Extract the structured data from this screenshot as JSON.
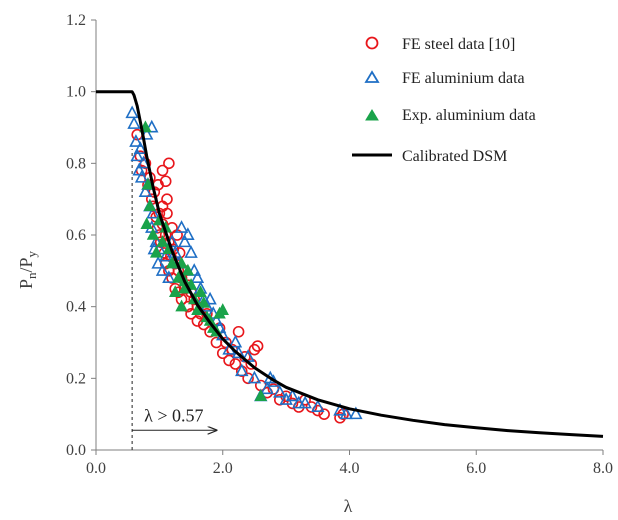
{
  "chart_data": {
    "type": "scatter",
    "xlabel": "λ",
    "ylabel_main": "P",
    "ylabel_sub1": "n",
    "ylabel_mid": "/P",
    "ylabel_sub2": "y",
    "xlim": [
      0,
      8
    ],
    "ylim": [
      0,
      1.2
    ],
    "x_ticks": [
      "0.0",
      "2.0",
      "4.0",
      "6.0",
      "8.0"
    ],
    "y_ticks": [
      "0.0",
      "0.2",
      "0.4",
      "0.6",
      "0.8",
      "1.0",
      "1.2"
    ],
    "grid": false,
    "legend_position": "top-right",
    "colors": {
      "steel": "#e8161b",
      "fe_alu": "#1f6fc5",
      "exp_alu": "#1aa34a",
      "curve": "#000000",
      "axis": "#7f7f7f"
    },
    "annotation": {
      "text": "λ > 0.57",
      "threshold": 0.57,
      "arrow_to_x": 1.9,
      "arrow_y": 0.055
    },
    "series": [
      {
        "name": "FE steel  data [10]",
        "marker": "circle-open",
        "points": [
          [
            0.65,
            0.88
          ],
          [
            0.7,
            0.82
          ],
          [
            0.72,
            0.78
          ],
          [
            0.78,
            0.8
          ],
          [
            0.82,
            0.74
          ],
          [
            0.85,
            0.76
          ],
          [
            0.88,
            0.7
          ],
          [
            0.9,
            0.68
          ],
          [
            0.92,
            0.72
          ],
          [
            0.95,
            0.65
          ],
          [
            0.97,
            0.62
          ],
          [
            1.0,
            0.66
          ],
          [
            1.0,
            0.6
          ],
          [
            1.02,
            0.58
          ],
          [
            1.05,
            0.68
          ],
          [
            1.05,
            0.63
          ],
          [
            1.08,
            0.55
          ],
          [
            1.1,
            0.6
          ],
          [
            1.1,
            0.52
          ],
          [
            1.12,
            0.66
          ],
          [
            1.12,
            0.7
          ],
          [
            1.15,
            0.58
          ],
          [
            1.15,
            0.5
          ],
          [
            1.18,
            0.54
          ],
          [
            1.2,
            0.62
          ],
          [
            1.2,
            0.48
          ],
          [
            1.22,
            0.56
          ],
          [
            1.25,
            0.52
          ],
          [
            1.25,
            0.45
          ],
          [
            1.28,
            0.6
          ],
          [
            1.3,
            0.5
          ],
          [
            1.3,
            0.44
          ],
          [
            1.32,
            0.55
          ],
          [
            1.35,
            0.48
          ],
          [
            1.35,
            0.42
          ],
          [
            1.4,
            0.5
          ],
          [
            1.4,
            0.45
          ],
          [
            1.45,
            0.46
          ],
          [
            1.45,
            0.4
          ],
          [
            1.5,
            0.44
          ],
          [
            1.5,
            0.38
          ],
          [
            1.55,
            0.42
          ],
          [
            1.6,
            0.4
          ],
          [
            1.6,
            0.36
          ],
          [
            1.65,
            0.38
          ],
          [
            1.7,
            0.35
          ],
          [
            1.75,
            0.38
          ],
          [
            1.8,
            0.33
          ],
          [
            1.9,
            0.3
          ],
          [
            1.95,
            0.34
          ],
          [
            2.0,
            0.27
          ],
          [
            2.05,
            0.3
          ],
          [
            2.1,
            0.25
          ],
          [
            2.15,
            0.28
          ],
          [
            2.2,
            0.24
          ],
          [
            2.25,
            0.33
          ],
          [
            2.3,
            0.22
          ],
          [
            2.35,
            0.26
          ],
          [
            2.4,
            0.2
          ],
          [
            2.45,
            0.24
          ],
          [
            2.5,
            0.28
          ],
          [
            2.55,
            0.29
          ],
          [
            2.6,
            0.18
          ],
          [
            2.7,
            0.16
          ],
          [
            2.8,
            0.17
          ],
          [
            2.9,
            0.14
          ],
          [
            3.0,
            0.15
          ],
          [
            3.1,
            0.13
          ],
          [
            3.2,
            0.12
          ],
          [
            3.3,
            0.14
          ],
          [
            3.4,
            0.12
          ],
          [
            3.5,
            0.11
          ],
          [
            3.6,
            0.1
          ],
          [
            3.85,
            0.09
          ],
          [
            3.9,
            0.1
          ],
          [
            1.05,
            0.78
          ],
          [
            1.1,
            0.75
          ],
          [
            1.15,
            0.8
          ],
          [
            0.98,
            0.74
          ]
        ]
      },
      {
        "name": "FE aluminium data",
        "marker": "triangle-open",
        "points": [
          [
            0.57,
            0.94
          ],
          [
            0.6,
            0.91
          ],
          [
            0.63,
            0.86
          ],
          [
            0.65,
            0.82
          ],
          [
            0.68,
            0.78
          ],
          [
            0.7,
            0.84
          ],
          [
            0.72,
            0.76
          ],
          [
            0.75,
            0.8
          ],
          [
            0.78,
            0.72
          ],
          [
            0.8,
            0.88
          ],
          [
            0.82,
            0.74
          ],
          [
            0.85,
            0.68
          ],
          [
            0.88,
            0.62
          ],
          [
            0.9,
            0.66
          ],
          [
            0.92,
            0.56
          ],
          [
            0.95,
            0.58
          ],
          [
            0.98,
            0.52
          ],
          [
            1.0,
            0.56
          ],
          [
            1.05,
            0.5
          ],
          [
            1.1,
            0.54
          ],
          [
            1.15,
            0.48
          ],
          [
            1.2,
            0.58
          ],
          [
            1.25,
            0.55
          ],
          [
            1.3,
            0.52
          ],
          [
            1.35,
            0.62
          ],
          [
            1.4,
            0.58
          ],
          [
            1.45,
            0.6
          ],
          [
            1.5,
            0.55
          ],
          [
            1.55,
            0.5
          ],
          [
            1.6,
            0.48
          ],
          [
            1.65,
            0.45
          ],
          [
            1.7,
            0.42
          ],
          [
            1.75,
            0.4
          ],
          [
            1.8,
            0.42
          ],
          [
            1.85,
            0.38
          ],
          [
            1.9,
            0.36
          ],
          [
            1.95,
            0.34
          ],
          [
            2.0,
            0.32
          ],
          [
            2.1,
            0.28
          ],
          [
            2.2,
            0.3
          ],
          [
            2.25,
            0.27
          ],
          [
            2.3,
            0.22
          ],
          [
            2.4,
            0.26
          ],
          [
            2.5,
            0.2
          ],
          [
            2.6,
            0.15
          ],
          [
            2.7,
            0.17
          ],
          [
            2.75,
            0.2
          ],
          [
            2.8,
            0.19
          ],
          [
            2.9,
            0.16
          ],
          [
            3.0,
            0.14
          ],
          [
            3.1,
            0.15
          ],
          [
            3.2,
            0.13
          ],
          [
            3.3,
            0.13
          ],
          [
            3.5,
            0.12
          ],
          [
            3.85,
            0.11
          ],
          [
            3.95,
            0.1
          ],
          [
            4.1,
            0.1
          ],
          [
            0.88,
            0.9
          ]
        ]
      },
      {
        "name": "Exp. aluminium data",
        "marker": "triangle-filled",
        "points": [
          [
            0.78,
            0.9
          ],
          [
            0.8,
            0.63
          ],
          [
            0.82,
            0.74
          ],
          [
            0.85,
            0.68
          ],
          [
            0.9,
            0.6
          ],
          [
            0.95,
            0.55
          ],
          [
            1.0,
            0.64
          ],
          [
            1.05,
            0.58
          ],
          [
            1.1,
            0.62
          ],
          [
            1.15,
            0.56
          ],
          [
            1.2,
            0.52
          ],
          [
            1.25,
            0.44
          ],
          [
            1.3,
            0.48
          ],
          [
            1.35,
            0.4
          ],
          [
            1.4,
            0.45
          ],
          [
            1.45,
            0.5
          ],
          [
            1.5,
            0.46
          ],
          [
            1.55,
            0.42
          ],
          [
            1.6,
            0.39
          ],
          [
            1.65,
            0.44
          ],
          [
            1.7,
            0.41
          ],
          [
            1.75,
            0.37
          ],
          [
            1.8,
            0.36
          ],
          [
            1.85,
            0.34
          ],
          [
            1.9,
            0.33
          ],
          [
            1.95,
            0.38
          ],
          [
            2.0,
            0.39
          ],
          [
            2.6,
            0.15
          ],
          [
            1.35,
            0.52
          ],
          [
            1.4,
            0.47
          ]
        ]
      },
      {
        "name": "Calibrated DSM",
        "type": "line",
        "points": [
          [
            0,
            1.0
          ],
          [
            0.57,
            1.0
          ],
          [
            0.6,
            0.99
          ],
          [
            0.65,
            0.96
          ],
          [
            0.7,
            0.915
          ],
          [
            0.75,
            0.87
          ],
          [
            0.8,
            0.82
          ],
          [
            0.9,
            0.735
          ],
          [
            1.0,
            0.66
          ],
          [
            1.2,
            0.555
          ],
          [
            1.4,
            0.47
          ],
          [
            1.6,
            0.405
          ],
          [
            1.8,
            0.355
          ],
          [
            2.0,
            0.31
          ],
          [
            2.2,
            0.275
          ],
          [
            2.5,
            0.23
          ],
          [
            2.8,
            0.195
          ],
          [
            3.0,
            0.175
          ],
          [
            3.5,
            0.14
          ],
          [
            4.0,
            0.115
          ],
          [
            4.5,
            0.097
          ],
          [
            5.0,
            0.083
          ],
          [
            5.5,
            0.071
          ],
          [
            6.0,
            0.062
          ],
          [
            6.5,
            0.054
          ],
          [
            7.0,
            0.048
          ],
          [
            7.5,
            0.043
          ],
          [
            8.0,
            0.038
          ]
        ]
      }
    ]
  }
}
